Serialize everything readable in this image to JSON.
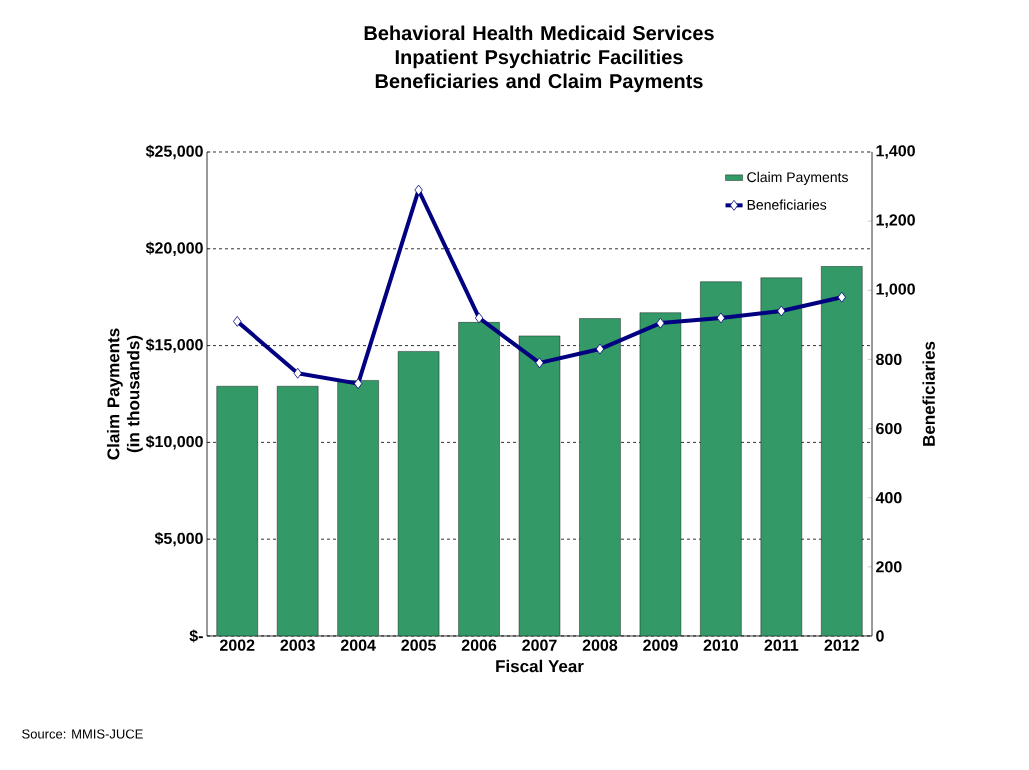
{
  "chart_data": {
    "type": "bar",
    "title": "Behavioral Health Medicaid Services",
    "subtitle": "Inpatient Psychiatric Facilities Beneficiaries and Claim Payments",
    "xlabel": "Fiscal Year",
    "ylabel": "Claim Payments (in thousands)",
    "y2label": "Beneficiaries",
    "categories": [
      "2002",
      "2003",
      "2004",
      "2005",
      "2006",
      "2007",
      "2008",
      "2009",
      "2010",
      "2011",
      "2012"
    ],
    "series": [
      {
        "name": "Claim Payments",
        "color": "#339966",
        "values": [
          12900,
          12900,
          13200,
          14700,
          16200,
          15500,
          16400,
          16700,
          18300,
          18500,
          19100
        ]
      },
      {
        "name": "Beneficiaries",
        "type": "line",
        "axis": "y2",
        "color": "#000080",
        "marker": "diamond",
        "line_style": "solid",
        "values": [
          910,
          760,
          730,
          1290,
          920,
          790,
          830,
          905,
          920,
          940,
          980
        ]
      }
    ],
    "ylim": [
      0,
      25000
    ],
    "yticks": [
      {
        "value": 0,
        "label": "$-"
      },
      {
        "value": 5000,
        "label": "$5,000"
      },
      {
        "value": 10000,
        "label": "$10,000"
      },
      {
        "value": 15000,
        "label": "$15,000"
      },
      {
        "value": 20000,
        "label": "$20,000"
      },
      {
        "value": 25000,
        "label": "$25,000"
      }
    ],
    "y2lim": [
      0,
      1400
    ],
    "y2ticks": [
      0,
      200,
      400,
      600,
      800,
      {
        "value": 1000,
        "label": "1,000"
      },
      {
        "value": 1200,
        "label": "1,200"
      },
      {
        "value": 1400,
        "label": "1,400"
      }
    ],
    "grid": "y",
    "legend": "top right",
    "annotations": [
      "Source: MMIS-JUCE"
    ]
  }
}
